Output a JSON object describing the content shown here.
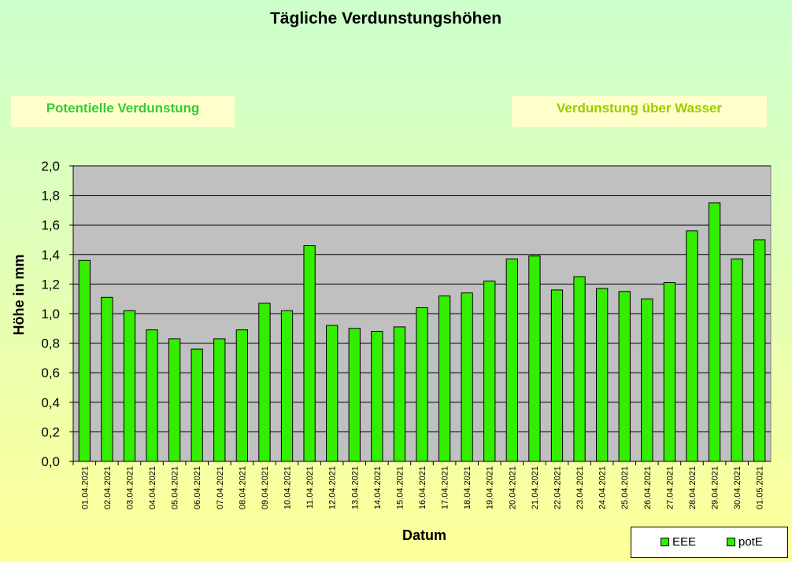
{
  "chart_data": {
    "type": "bar",
    "title": "Tägliche Verdunstungshöhen",
    "xlabel": "Datum",
    "ylabel": "Höhe in mm",
    "ylim": [
      0,
      2.0
    ],
    "yticks": [
      "0,0",
      "0,2",
      "0,4",
      "0,6",
      "0,8",
      "1,0",
      "1,2",
      "1,4",
      "1,6",
      "1,8",
      "2,0"
    ],
    "grid": true,
    "categories": [
      "01.04.2021",
      "02.04.2021",
      "03.04.2021",
      "04.04.2021",
      "05.04.2021",
      "06.04.2021",
      "07.04.2021",
      "08.04.2021",
      "09.04.2021",
      "10.04.2021",
      "11.04.2021",
      "12.04.2021",
      "13.04.2021",
      "14.04.2021",
      "15.04.2021",
      "16.04.2021",
      "17.04.2021",
      "18.04.2021",
      "19.04.2021",
      "20.04.2021",
      "21.04.2021",
      "22.04.2021",
      "23.04.2021",
      "24.04.2021",
      "25.04.2021",
      "26.04.2021",
      "27.04.2021",
      "28.04.2021",
      "29.04.2021",
      "30.04.2021",
      "01.05.2021"
    ],
    "series": [
      {
        "name": "potE",
        "values": [
          1.36,
          1.11,
          1.02,
          0.89,
          0.83,
          0.76,
          0.83,
          0.89,
          1.07,
          1.02,
          1.46,
          0.92,
          0.9,
          0.88,
          0.91,
          1.04,
          1.12,
          1.14,
          1.22,
          1.37,
          1.39,
          1.16,
          1.25,
          1.17,
          1.15,
          1.1,
          1.21,
          1.56,
          1.75,
          1.37,
          1.5
        ]
      }
    ],
    "bar_color": "#33ee00",
    "plot_background": "#c0c0c0",
    "legend_position": "bottom-right",
    "legend": [
      "EEE",
      "potE"
    ]
  },
  "boxes": {
    "left": "Potentielle Verdunstung",
    "right": "Verdunstung über Wasser"
  },
  "colors": {
    "left_box_text": "#33cc33",
    "right_box_text": "#99cc00",
    "box_background": "#ffffcc"
  }
}
